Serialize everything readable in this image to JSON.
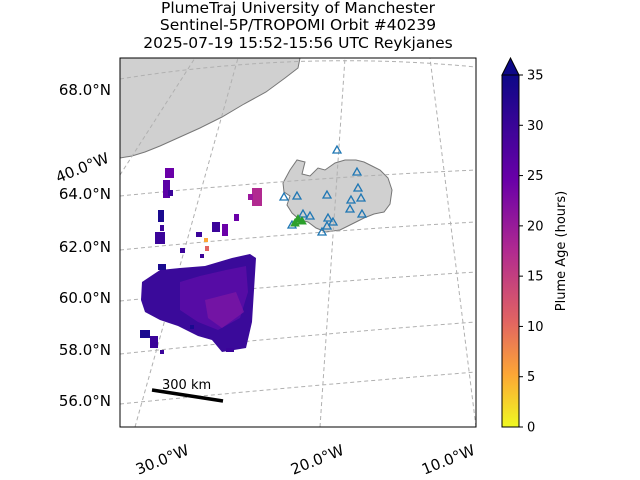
{
  "title": {
    "line1": "PlumeTraj    University of Manchester",
    "line2": "Sentinel-5P/TROPOMI Orbit #40239",
    "line3": "2025-07-19   15:52-15:56 UTC   Reykjanes"
  },
  "map": {
    "lat_labels": [
      "68.0°N",
      "64.0°N",
      "62.0°N",
      "60.0°N",
      "58.0°N",
      "56.0°N"
    ],
    "lon_labels": [
      "30.0°W",
      "20.0°W",
      "10.0°W"
    ],
    "side_lon_label": "40.0°W",
    "scale_bar": "300 km",
    "gridlines": true,
    "land_color": "#d0d0d0",
    "volcano_marker_color": "#2ca02c",
    "station_marker_color": "#1f77b4"
  },
  "colorbar": {
    "label": "Plume Age (hours)",
    "ticks": [
      "0",
      "5",
      "10",
      "15",
      "20",
      "25",
      "30",
      "35"
    ],
    "range": [
      0,
      35
    ],
    "colormap": "plasma_r",
    "extend": "max"
  }
}
